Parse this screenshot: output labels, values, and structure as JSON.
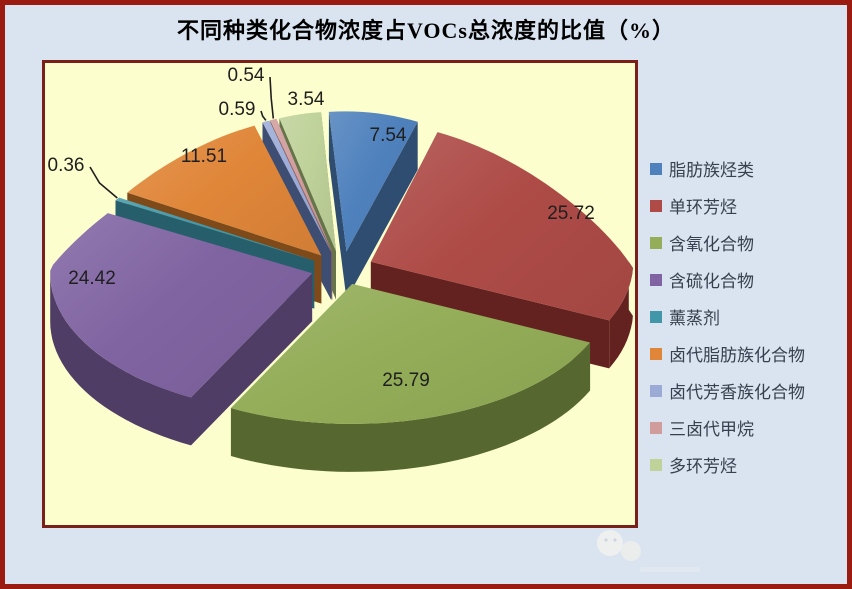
{
  "title": "不同种类化合物浓度占VOCs总浓度的比值（%）",
  "chart_data": {
    "type": "pie",
    "style": "3d-exploded",
    "title": "不同种类化合物浓度占VOCs总浓度的比值（%）",
    "unit": "%",
    "labels": [
      "脂肪族烃类",
      "单环芳烃",
      "含氧化合物",
      "含硫化合物",
      "薰蒸剂",
      "卤代脂肪族化合物",
      "卤代芳香族化合物",
      "三卤代甲烷",
      "多环芳烃"
    ],
    "values": [
      7.54,
      25.72,
      25.79,
      24.42,
      0.36,
      11.51,
      0.59,
      0.54,
      3.54
    ],
    "value_labels": [
      "7.54",
      "25.72",
      "25.79",
      "24.42",
      "0.36",
      "11.51",
      "0.59",
      "0.54",
      "3.54"
    ],
    "colors": [
      "#4F81BD",
      "#AE4B47",
      "#93AD58",
      "#8064A2",
      "#4197A8",
      "#E08639",
      "#9BABD6",
      "#D19C9C",
      "#BFD29A"
    ],
    "side_colors": [
      "#2E4D71",
      "#63211F",
      "#56682F",
      "#4F3D66",
      "#275E6B",
      "#7E4A1A",
      "#3E4E73",
      "#8A5F63",
      "#66744A"
    ],
    "legend_position": "right",
    "label_color": "#1F1F1F",
    "plot_background": "#FDFECD",
    "outer_background": "#DAE4F0",
    "border_color": "#9B1B10"
  }
}
